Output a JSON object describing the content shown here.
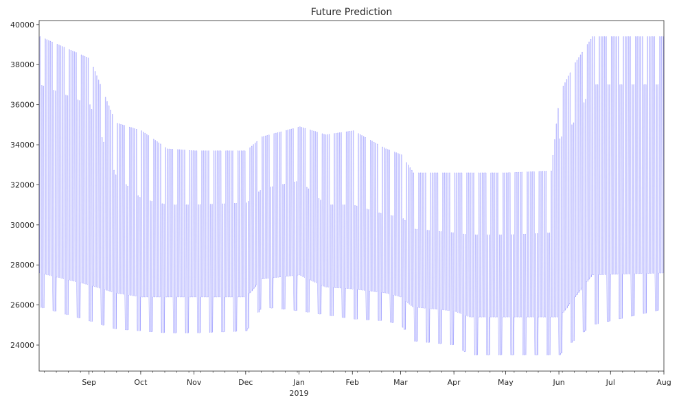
{
  "chart_data": {
    "type": "line",
    "title": "Future Prediction",
    "xlabel": "",
    "ylabel": "",
    "x_range": [
      "2018-08-03",
      "2019-08-01"
    ],
    "ylim": [
      22700,
      40200
    ],
    "yticks": [
      24000,
      26000,
      28000,
      30000,
      32000,
      34000,
      36000,
      38000,
      40000
    ],
    "xticks": [
      {
        "date": "2018-09-01",
        "label": "Sep",
        "sublabel": ""
      },
      {
        "date": "2018-10-01",
        "label": "Oct",
        "sublabel": ""
      },
      {
        "date": "2018-11-01",
        "label": "Nov",
        "sublabel": ""
      },
      {
        "date": "2018-12-01",
        "label": "Dec",
        "sublabel": ""
      },
      {
        "date": "2019-01-01",
        "label": "Jan",
        "sublabel": "2019"
      },
      {
        "date": "2019-02-01",
        "label": "Feb",
        "sublabel": ""
      },
      {
        "date": "2019-03-01",
        "label": "Mar",
        "sublabel": ""
      },
      {
        "date": "2019-04-01",
        "label": "Apr",
        "sublabel": ""
      },
      {
        "date": "2019-05-01",
        "label": "May",
        "sublabel": ""
      },
      {
        "date": "2019-06-01",
        "label": "Jun",
        "sublabel": ""
      },
      {
        "date": "2019-07-01",
        "label": "Jul",
        "sublabel": ""
      },
      {
        "date": "2019-08-01",
        "label": "Aug",
        "sublabel": ""
      }
    ],
    "grid": false,
    "series": [
      {
        "color": "#0000ff",
        "monthly_envelope": [
          {
            "date": "2018-08-03",
            "high": 39400,
            "mid": 37000,
            "low": 27600,
            "weekend_low": 25900
          },
          {
            "date": "2018-09-01",
            "high": 38300,
            "mid": 36000,
            "low": 27000,
            "weekend_low": 25200
          },
          {
            "date": "2018-09-16",
            "high": 35100,
            "mid": 32500,
            "low": 26600,
            "weekend_low": 24800
          },
          {
            "date": "2018-10-01",
            "high": 34700,
            "mid": 31300,
            "low": 26400,
            "weekend_low": 24700
          },
          {
            "date": "2018-10-16",
            "high": 33800,
            "mid": 31000,
            "low": 26400,
            "weekend_low": 24600
          },
          {
            "date": "2018-11-01",
            "high": 33700,
            "mid": 31000,
            "low": 26400,
            "weekend_low": 24600
          },
          {
            "date": "2018-12-01",
            "high": 33700,
            "mid": 31100,
            "low": 26400,
            "weekend_low": 24700
          },
          {
            "date": "2018-12-10",
            "high": 34400,
            "mid": 31800,
            "low": 27300,
            "weekend_low": 25900
          },
          {
            "date": "2019-01-01",
            "high": 34900,
            "mid": 32200,
            "low": 27500,
            "weekend_low": 25700
          },
          {
            "date": "2019-01-16",
            "high": 34500,
            "mid": 31000,
            "low": 26900,
            "weekend_low": 25500
          },
          {
            "date": "2019-02-01",
            "high": 34700,
            "mid": 31000,
            "low": 26800,
            "weekend_low": 25300
          },
          {
            "date": "2019-02-20",
            "high": 33800,
            "mid": 30500,
            "low": 26600,
            "weekend_low": 25200
          },
          {
            "date": "2019-03-01",
            "high": 33500,
            "mid": 30400,
            "low": 26400,
            "weekend_low": 25000
          },
          {
            "date": "2019-03-08",
            "high": 32600,
            "mid": 29800,
            "low": 25900,
            "weekend_low": 24200
          },
          {
            "date": "2019-04-01",
            "high": 32600,
            "mid": 29600,
            "low": 25700,
            "weekend_low": 24000
          },
          {
            "date": "2019-04-10",
            "high": 32600,
            "mid": 29500,
            "low": 25400,
            "weekend_low": 23500
          },
          {
            "date": "2019-05-01",
            "high": 32600,
            "mid": 29500,
            "low": 25400,
            "weekend_low": 23500
          },
          {
            "date": "2019-05-27",
            "high": 32700,
            "mid": 29600,
            "low": 25400,
            "weekend_low": 23500
          },
          {
            "date": "2019-06-01",
            "high": 36600,
            "mid": 34300,
            "low": 25400,
            "weekend_low": 23500
          },
          {
            "date": "2019-06-10",
            "high": 38100,
            "mid": 35200,
            "low": 26400,
            "weekend_low": 24300
          },
          {
            "date": "2019-06-20",
            "high": 39400,
            "mid": 37000,
            "low": 27500,
            "weekend_low": 25000
          },
          {
            "date": "2019-08-01",
            "high": 39400,
            "mid": 37000,
            "low": 27600,
            "weekend_low": 25800
          }
        ]
      }
    ]
  }
}
